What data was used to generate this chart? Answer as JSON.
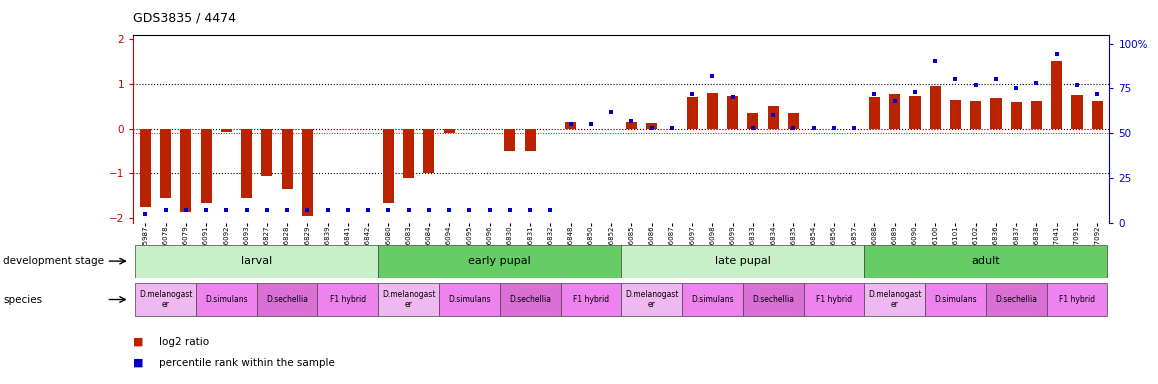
{
  "title": "GDS3835 / 4474",
  "samples": [
    "GSM435987",
    "GSM436078",
    "GSM436079",
    "GSM436091",
    "GSM436092",
    "GSM436093",
    "GSM436827",
    "GSM436828",
    "GSM436829",
    "GSM436839",
    "GSM436841",
    "GSM436842",
    "GSM436080",
    "GSM436083",
    "GSM436084",
    "GSM436094",
    "GSM436095",
    "GSM436096",
    "GSM436830",
    "GSM436831",
    "GSM436832",
    "GSM436848",
    "GSM436850",
    "GSM436852",
    "GSM436085",
    "GSM436086",
    "GSM436087",
    "GSM436097",
    "GSM436098",
    "GSM436099",
    "GSM436833",
    "GSM436834",
    "GSM436835",
    "GSM436854",
    "GSM436856",
    "GSM436857",
    "GSM436088",
    "GSM436089",
    "GSM436090",
    "GSM436100",
    "GSM436101",
    "GSM436102",
    "GSM436836",
    "GSM436837",
    "GSM436838",
    "GSM437041",
    "GSM437091",
    "GSM437092"
  ],
  "log2_ratio": [
    -1.75,
    -1.55,
    -1.85,
    -1.65,
    -0.07,
    -1.55,
    -1.05,
    -1.35,
    -1.95,
    0.0,
    0.0,
    0.0,
    -1.65,
    -1.1,
    -1.0,
    -0.1,
    0.0,
    0.0,
    -0.5,
    -0.5,
    0.0,
    0.15,
    0.0,
    0.0,
    0.15,
    0.12,
    0.0,
    0.7,
    0.8,
    0.72,
    0.35,
    0.5,
    0.35,
    0.0,
    0.0,
    0.0,
    0.7,
    0.78,
    0.72,
    0.95,
    0.65,
    0.62,
    0.68,
    0.6,
    0.62,
    1.5,
    0.75,
    0.62
  ],
  "percentile_rank": [
    5,
    7,
    7,
    7,
    7,
    7,
    7,
    7,
    7,
    7,
    7,
    7,
    7,
    7,
    7,
    7,
    7,
    7,
    7,
    7,
    7,
    55,
    55,
    62,
    57,
    53,
    53,
    72,
    82,
    70,
    53,
    60,
    53,
    53,
    53,
    53,
    72,
    68,
    73,
    90,
    80,
    77,
    80,
    75,
    78,
    94,
    77,
    72
  ],
  "development_stages": [
    {
      "label": "larval",
      "start": 0,
      "end": 11
    },
    {
      "label": "early pupal",
      "start": 12,
      "end": 23
    },
    {
      "label": "late pupal",
      "start": 24,
      "end": 35
    },
    {
      "label": "adult",
      "start": 36,
      "end": 47
    }
  ],
  "species_groups": [
    {
      "label": "D.melanogast\ner",
      "start": 0,
      "end": 2,
      "color": "#f0b8f0"
    },
    {
      "label": "D.simulans",
      "start": 3,
      "end": 5,
      "color": "#ee82ee"
    },
    {
      "label": "D.sechellia",
      "start": 6,
      "end": 8,
      "color": "#da70d6"
    },
    {
      "label": "F1 hybrid",
      "start": 9,
      "end": 11,
      "color": "#ee82ee"
    },
    {
      "label": "D.melanogast\ner",
      "start": 12,
      "end": 14,
      "color": "#f0b8f0"
    },
    {
      "label": "D.simulans",
      "start": 15,
      "end": 17,
      "color": "#ee82ee"
    },
    {
      "label": "D.sechellia",
      "start": 18,
      "end": 20,
      "color": "#da70d6"
    },
    {
      "label": "F1 hybrid",
      "start": 21,
      "end": 23,
      "color": "#ee82ee"
    },
    {
      "label": "D.melanogast\ner",
      "start": 24,
      "end": 26,
      "color": "#f0b8f0"
    },
    {
      "label": "D.simulans",
      "start": 27,
      "end": 29,
      "color": "#ee82ee"
    },
    {
      "label": "D.sechellia",
      "start": 30,
      "end": 32,
      "color": "#da70d6"
    },
    {
      "label": "F1 hybrid",
      "start": 33,
      "end": 35,
      "color": "#ee82ee"
    },
    {
      "label": "D.melanogast\ner",
      "start": 36,
      "end": 38,
      "color": "#f0b8f0"
    },
    {
      "label": "D.simulans",
      "start": 39,
      "end": 41,
      "color": "#ee82ee"
    },
    {
      "label": "D.sechellia",
      "start": 42,
      "end": 44,
      "color": "#da70d6"
    },
    {
      "label": "F1 hybrid",
      "start": 45,
      "end": 47,
      "color": "#ee82ee"
    }
  ],
  "bar_color": "#bb2200",
  "square_color": "#0000cc",
  "stage_color_light": "#c8f0c8",
  "stage_color_dark": "#66cc66",
  "ylim_left": [
    -2.1,
    2.1
  ],
  "ylim_right": [
    0,
    105
  ],
  "yticks_left": [
    -2,
    -1,
    0,
    1,
    2
  ],
  "yticks_right": [
    0,
    25,
    50,
    75,
    100
  ],
  "left_axis_color": "#cc0000",
  "right_axis_color": "#0000cc"
}
